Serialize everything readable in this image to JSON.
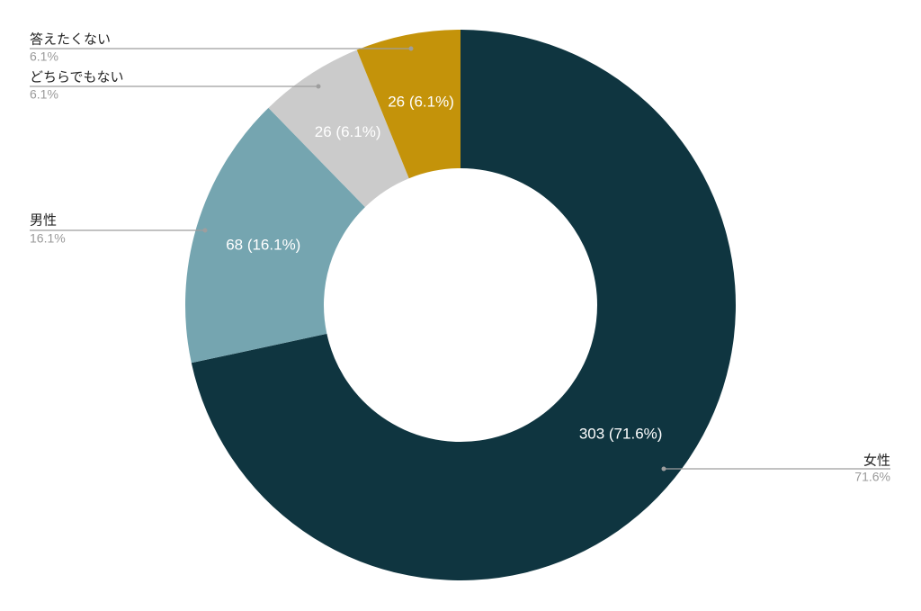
{
  "chart_data": {
    "type": "pie",
    "subtype": "donut",
    "title": "",
    "start_angle_deg": 0,
    "direction": "clockwise",
    "legend_placement": "outside-labels",
    "slices": [
      {
        "label": "女性",
        "value": 303,
        "percent_label": "71.6%",
        "data_label": "303 (71.6%)",
        "color": "#0f3540"
      },
      {
        "label": "男性",
        "value": 68,
        "percent_label": "16.1%",
        "data_label": "68 (16.1%)",
        "color": "#75a5b0"
      },
      {
        "label": "どちらでもない",
        "value": 26,
        "percent_label": "6.1%",
        "data_label": "26 (6.1%)",
        "color": "#cbcbcb"
      },
      {
        "label": "答えたくない",
        "value": 26,
        "percent_label": "6.1%",
        "data_label": "26 (6.1%)",
        "color": "#c4930a"
      }
    ]
  },
  "colors": {
    "background": "#ffffff",
    "leader_line": "#9e9e9e",
    "slice_text": "#ffffff",
    "legend_name": "#222222",
    "legend_percent": "#9a9a9a"
  }
}
